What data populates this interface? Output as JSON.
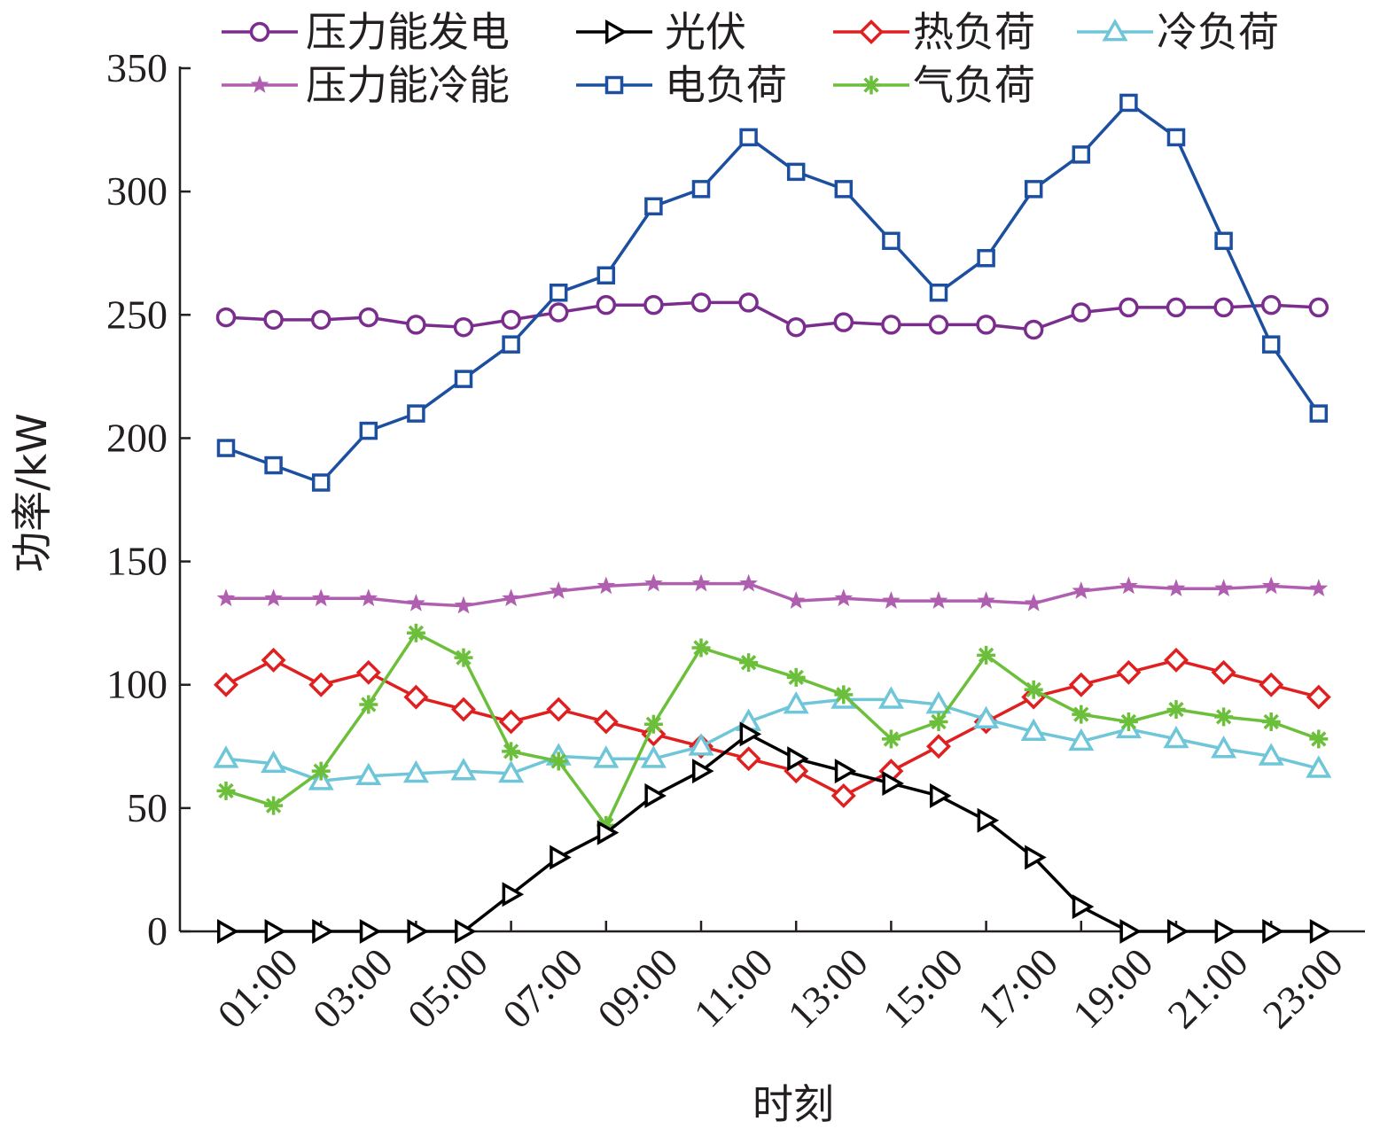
{
  "chart_data": {
    "type": "line",
    "xlabel": "时刻",
    "ylabel": "功率/kW",
    "ylim": [
      0,
      350
    ],
    "yticks": [
      0,
      50,
      100,
      150,
      200,
      250,
      300,
      350
    ],
    "x_tick_labels": [
      "01:00",
      "03:00",
      "05:00",
      "07:00",
      "09:00",
      "11:00",
      "13:00",
      "15:00",
      "17:00",
      "19:00",
      "21:00",
      "23:00"
    ],
    "x": [
      "00:00",
      "01:00",
      "02:00",
      "03:00",
      "04:00",
      "05:00",
      "06:00",
      "07:00",
      "08:00",
      "09:00",
      "10:00",
      "11:00",
      "12:00",
      "13:00",
      "14:00",
      "15:00",
      "16:00",
      "17:00",
      "18:00",
      "19:00",
      "20:00",
      "21:00",
      "22:00",
      "23:00"
    ],
    "grid": false,
    "legend_position": "top",
    "series": [
      {
        "name": "压力能发电",
        "color": "#7b2d8e",
        "marker": "circle",
        "values": [
          249,
          248,
          248,
          249,
          246,
          245,
          248,
          251,
          254,
          254,
          255,
          255,
          245,
          247,
          246,
          246,
          246,
          244,
          251,
          253,
          253,
          253,
          254,
          253
        ]
      },
      {
        "name": "光伏",
        "color": "#000000",
        "marker": "triangle-right",
        "values": [
          0,
          0,
          0,
          0,
          0,
          0,
          15,
          30,
          40,
          55,
          65,
          80,
          70,
          65,
          60,
          55,
          45,
          30,
          10,
          0,
          0,
          0,
          0,
          0
        ]
      },
      {
        "name": "热负荷",
        "color": "#e02020",
        "marker": "diamond",
        "values": [
          100,
          110,
          100,
          105,
          95,
          90,
          85,
          90,
          85,
          80,
          75,
          70,
          65,
          55,
          65,
          75,
          85,
          95,
          100,
          105,
          110,
          105,
          100,
          95
        ]
      },
      {
        "name": "冷负荷",
        "color": "#6ec6d8",
        "marker": "triangle-up",
        "values": [
          70,
          68,
          61,
          63,
          64,
          65,
          64,
          71,
          70,
          70,
          75,
          85,
          92,
          94,
          94,
          92,
          86,
          81,
          77,
          82,
          78,
          74,
          71,
          66
        ]
      },
      {
        "name": "压力能冷能",
        "color": "#b05fb0",
        "marker": "star",
        "values": [
          135,
          135,
          135,
          135,
          133,
          132,
          135,
          138,
          140,
          141,
          141,
          141,
          134,
          135,
          134,
          134,
          134,
          133,
          138,
          140,
          139,
          139,
          140,
          139
        ]
      },
      {
        "name": "电负荷",
        "color": "#1c4fa0",
        "marker": "square",
        "values": [
          196,
          189,
          182,
          203,
          210,
          224,
          238,
          259,
          266,
          294,
          301,
          322,
          308,
          301,
          280,
          259,
          273,
          301,
          315,
          336,
          322,
          280,
          238,
          210
        ]
      },
      {
        "name": "气负荷",
        "color": "#6cbf3a",
        "marker": "asterisk",
        "values": [
          57,
          51,
          65,
          92,
          121,
          111,
          73,
          69,
          43,
          84,
          115,
          109,
          103,
          96,
          78,
          85,
          112,
          98,
          88,
          85,
          90,
          87,
          85,
          78
        ]
      }
    ]
  }
}
